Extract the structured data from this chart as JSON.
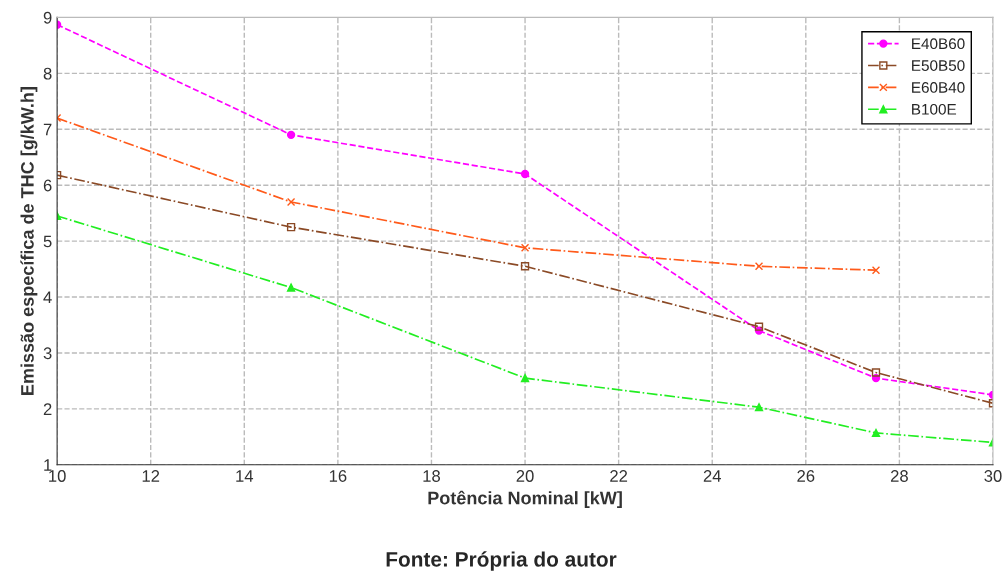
{
  "chart_data": {
    "type": "line",
    "xlabel": "Potência Nominal [kW]",
    "ylabel": "Emissão específica de THC [g/kW.h]",
    "annotations": [
      "Fonte: Própria do autor"
    ],
    "x": [
      10,
      15,
      20,
      25,
      27.5,
      30
    ],
    "series": [
      {
        "name": "E40B60",
        "color": "#ff00ff",
        "marker": "circle",
        "line_style": "dashed",
        "values": [
          8.87,
          6.9,
          6.2,
          3.4,
          2.55,
          2.25
        ]
      },
      {
        "name": "E50B50",
        "color": "#8b4a26",
        "marker": "square",
        "line_style": "dashdot",
        "values": [
          6.18,
          5.25,
          4.55,
          3.47,
          2.65,
          2.1
        ]
      },
      {
        "name": "E60B40",
        "color": "#ff5a1a",
        "marker": "cross",
        "line_style": "dashdot",
        "values": [
          7.2,
          5.7,
          4.88,
          4.55,
          4.48,
          null
        ]
      },
      {
        "name": "B100E",
        "color": "#22ee22",
        "marker": "triangle",
        "line_style": "dashdot",
        "values": [
          5.45,
          4.17,
          2.55,
          2.03,
          1.57,
          1.4
        ]
      }
    ],
    "xlim": [
      10,
      30
    ],
    "xticks": [
      10,
      12,
      14,
      16,
      18,
      20,
      22,
      24,
      26,
      28,
      30
    ],
    "ylim": [
      1,
      9
    ],
    "yticks": [
      1,
      2,
      3,
      4,
      5,
      6,
      7,
      8,
      9
    ],
    "grid": true,
    "legend": "top right"
  }
}
